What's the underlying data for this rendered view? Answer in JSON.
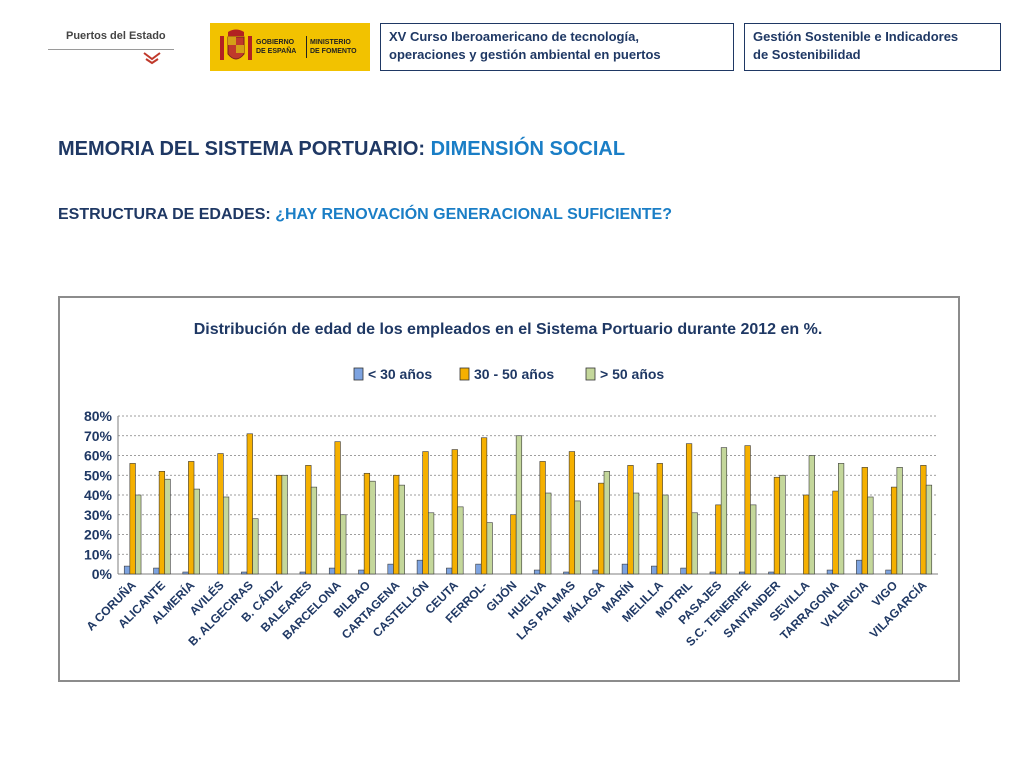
{
  "header": {
    "puertos_logo_text": "Puertos del Estado",
    "gobierno_text": "GOBIERNO\nDE ESPAÑA",
    "ministerio_text": "MINISTERIO\nDE FOMENTO",
    "course_line1": "XV Curso Iberoamericano de tecnología,",
    "course_line2": "operaciones y gestión ambiental en puertos",
    "gestion_line1": "Gestión Sostenible e Indicadores",
    "gestion_line2": "de Sostenibilidad"
  },
  "slide": {
    "title_main": "MEMORIA DEL SISTEMA PORTUARIO: ",
    "title_accent": "DIMENSIÓN SOCIAL",
    "subtitle_main": "ESTRUCTURA DE EDADES: ",
    "subtitle_accent": "¿HAY RENOVACIÓN GENERACIONAL SUFICIENTE?"
  },
  "colors": {
    "navy": "#1f3864",
    "accent_blue": "#1a7ec6",
    "series_under30": "#7da3e0",
    "series_30_50": "#f5b000",
    "series_over50": "#c4d79b"
  },
  "chart_data": {
    "type": "bar",
    "title": "Distribución de edad de los empleados en el Sistema Portuario durante 2012 en %.",
    "legend_position": "top",
    "grid": true,
    "ylim": [
      0,
      80
    ],
    "yticks": [
      0,
      10,
      20,
      30,
      40,
      50,
      60,
      70,
      80
    ],
    "ytick_labels": [
      "0%",
      "10%",
      "20%",
      "30%",
      "40%",
      "50%",
      "60%",
      "70%",
      "80%"
    ],
    "categories": [
      "A CORUÑA",
      "ALICANTE",
      "ALMERÍA",
      "AVILÉS",
      "B. ALGECIRAS",
      "B. CÁDIZ",
      "BALEARES",
      "BARCELONA",
      "BILBAO",
      "CARTAGENA",
      "CASTELLÓN",
      "CEUTA",
      "FERROL-",
      "GIJÓN",
      "HUELVA",
      "LAS PALMAS",
      "MÁLAGA",
      "MARÍN",
      "MELILLA",
      "MOTRIL",
      "PASAJES",
      "S.C. TENERIFE",
      "SANTANDER",
      "SEVILLA",
      "TARRAGONA",
      "VALENCIA",
      "VIGO",
      "VILAGARCÍA"
    ],
    "series": [
      {
        "name": "< 30 años",
        "values": [
          4,
          3,
          1,
          0,
          1,
          0,
          1,
          3,
          2,
          5,
          7,
          3,
          5,
          0,
          2,
          1,
          2,
          5,
          4,
          3,
          1,
          1,
          1,
          0,
          2,
          7,
          2,
          0
        ]
      },
      {
        "name": "30 - 50 años",
        "values": [
          56,
          52,
          57,
          61,
          71,
          50,
          55,
          67,
          51,
          50,
          62,
          63,
          69,
          30,
          57,
          62,
          46,
          55,
          56,
          66,
          35,
          65,
          49,
          40,
          42,
          54,
          44,
          55
        ]
      },
      {
        "name": "> 50 años",
        "values": [
          40,
          48,
          43,
          39,
          28,
          50,
          44,
          30,
          47,
          45,
          31,
          34,
          26,
          70,
          41,
          37,
          52,
          41,
          40,
          31,
          64,
          35,
          50,
          60,
          56,
          39,
          54,
          45
        ]
      }
    ]
  }
}
